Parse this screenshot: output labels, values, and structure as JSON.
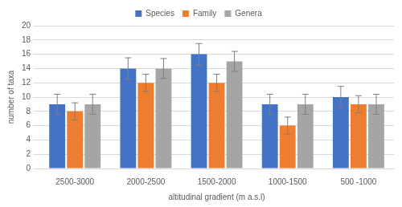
{
  "chart_data": {
    "type": "bar",
    "x_label": "altitudinal gradient (m a.s.l)",
    "y_label": "number of taxa",
    "categories": [
      "2500-3000",
      "2000-2500",
      "1500-2000",
      "1000-1500",
      "500 -1000"
    ],
    "series": [
      {
        "name": "Species",
        "color": "#4472c4",
        "values": [
          9,
          14,
          16,
          9,
          10
        ],
        "errors": [
          1.4,
          1.5,
          1.5,
          1.4,
          1.5
        ]
      },
      {
        "name": "Family",
        "color": "#ed7d31",
        "values": [
          8,
          12,
          12,
          6,
          9
        ],
        "errors": [
          1.2,
          1.2,
          1.2,
          1.2,
          1.2
        ]
      },
      {
        "name": "Genera",
        "color": "#a5a5a5",
        "values": [
          9,
          14,
          15,
          9,
          9
        ],
        "errors": [
          1.4,
          1.4,
          1.4,
          1.4,
          1.4
        ]
      }
    ],
    "ylim": [
      0,
      20
    ],
    "yticks": [
      0,
      2,
      4,
      6,
      8,
      10,
      12,
      14,
      16,
      18,
      20
    ],
    "grid": true,
    "legend": "top"
  }
}
